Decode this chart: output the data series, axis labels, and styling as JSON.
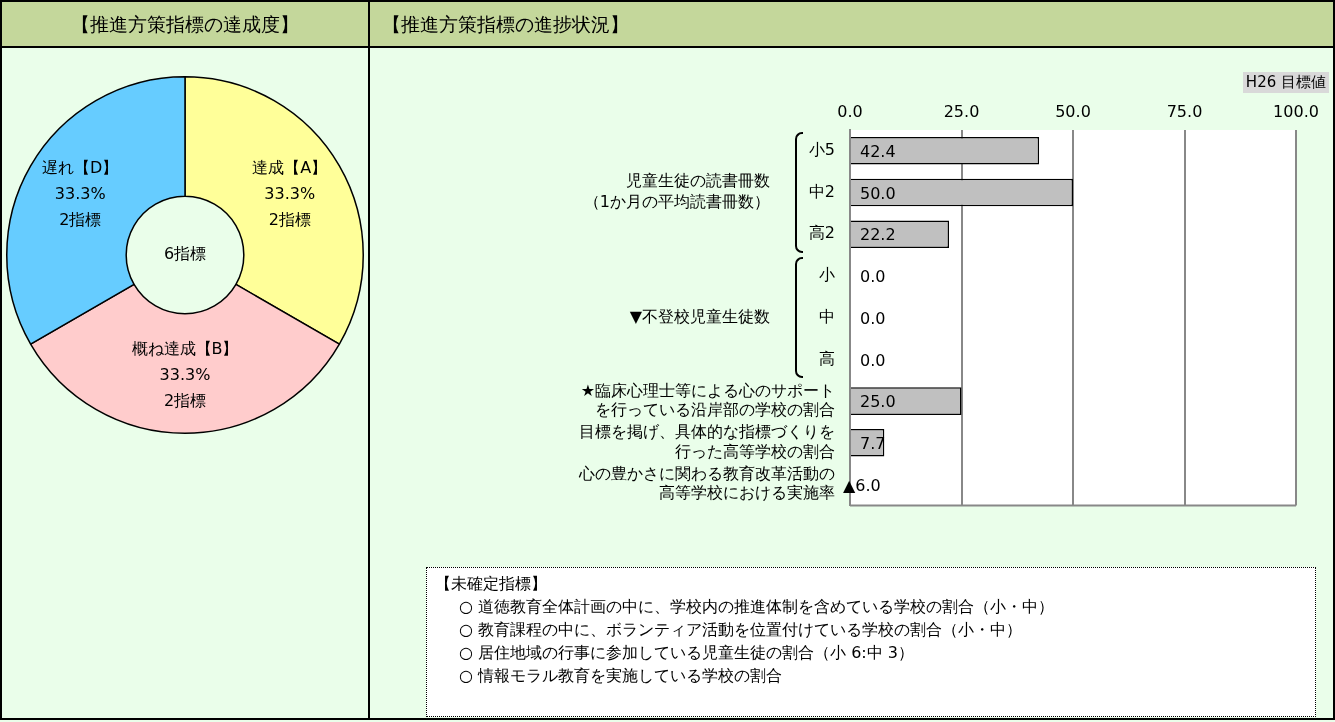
{
  "chart_data": [
    {
      "type": "donut",
      "title": "【推進方策指標の達成度】",
      "categories": [
        "達成【A】",
        "概ね達成【B】",
        "遅れ【D】"
      ],
      "values": [
        33.3,
        33.3,
        33.3
      ],
      "colors": [
        "#ffff99",
        "#ffcccc",
        "#66ccff"
      ],
      "value_labels": [
        "33.3%\n2指標",
        "33.3%\n2指標",
        "33.3%\n2指標"
      ],
      "annotations": [
        "6指標"
      ]
    },
    {
      "type": "bar",
      "orientation": "horizontal",
      "title": "【推進方策指標の進捗状況】",
      "xlabel": "H26 目標値",
      "categories": [
        "小5",
        "中2",
        "高2",
        "小",
        "中",
        "高",
        "★臨床心理士等による心のサポートを行っている沿岸部の学校の割合",
        "目標を掲げ、具体的な指標づくりを行った高等学校の割合",
        "心の豊かさに関わる教育改革活動の高等学校における実施率"
      ],
      "values": [
        42.4,
        50.0,
        22.2,
        0,
        0,
        0,
        25.0,
        7.7,
        null
      ],
      "value_labels": [
        "42.4",
        "50.0",
        "22.2",
        "0.0",
        "0.0",
        "0.0",
        "25.0",
        "7.7",
        "▲6.0"
      ],
      "color": "#c0c0c0",
      "xlim": [
        0,
        100
      ],
      "xticks": [
        {
          "value": 0,
          "label": "0.0"
        },
        {
          "value": 25,
          "label": "25.0"
        },
        {
          "value": 50,
          "label": "50.0"
        },
        {
          "value": 75,
          "label": "75.0"
        },
        {
          "value": 100,
          "label": "100.0"
        }
      ],
      "grid": "x",
      "annotations": [
        "児童生徒の読書冊数（1か月の平均読書冊数）",
        "▼不登校児童生徒数",
        "【未確定指標】",
        "○ 道徳教育全体計画の中に、学校内の推進体制を含めている学校の割合（小・中）",
        "○ 教育課程の中に、ボランティア活動を位置付けている学校の割合（小・中）",
        "○ 居住地域の行事に参加している児童生徒の割合（小 6:中 3）",
        "○ 情報モラル教育を実施している学校の割合"
      ]
    }
  ]
}
